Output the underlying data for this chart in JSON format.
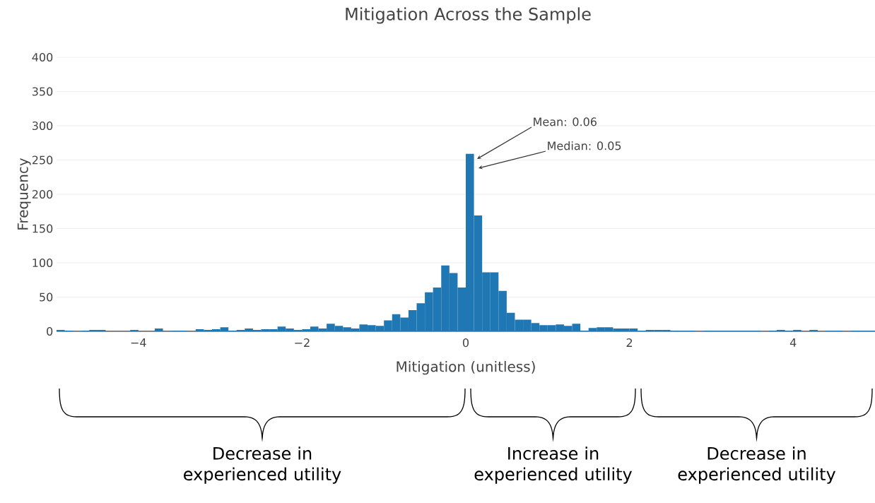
{
  "chart_data": {
    "type": "histogram",
    "title": "Mitigation Across the Sample",
    "xlabel": "Mitigation (unitless)",
    "ylabel": "Frequency",
    "bins": [
      -5.0,
      -4.9,
      -4.8,
      -4.7,
      -4.6,
      -4.5,
      -4.4,
      -4.3,
      -4.2,
      -4.1,
      -4.0,
      -3.9,
      -3.8,
      -3.7,
      -3.6,
      -3.5,
      -3.4,
      -3.3,
      -3.2,
      -3.1,
      -3.0,
      -2.9,
      -2.8,
      -2.7,
      -2.6,
      -2.5,
      -2.4,
      -2.3,
      -2.2,
      -2.1,
      -2.0,
      -1.9,
      -1.8,
      -1.7,
      -1.6,
      -1.5,
      -1.4,
      -1.3,
      -1.2,
      -1.1,
      -1.0,
      -0.9,
      -0.8,
      -0.7,
      -0.6,
      -0.5,
      -0.4,
      -0.3,
      -0.2,
      -0.1,
      0.0,
      0.1,
      0.2,
      0.3,
      0.4,
      0.5,
      0.6,
      0.7,
      0.8,
      0.9,
      1.0,
      1.1,
      1.2,
      1.3,
      1.4,
      1.5,
      1.6,
      1.7,
      1.8,
      1.9,
      2.0,
      2.1,
      2.2,
      2.3,
      2.4,
      2.5,
      2.6,
      2.7,
      2.8,
      2.9,
      3.0,
      3.1,
      3.2,
      3.3,
      3.4,
      3.5,
      3.6,
      3.7,
      3.8,
      3.9,
      4.0,
      4.1,
      4.2,
      4.3,
      4.4,
      4.5,
      4.6,
      4.7,
      4.8,
      4.9,
      5.0
    ],
    "values": [
      2,
      1,
      0,
      1,
      2,
      2,
      0,
      0,
      0,
      2,
      0,
      0,
      4,
      0,
      1,
      1,
      0,
      3,
      2,
      3,
      6,
      1,
      2,
      4,
      2,
      3,
      3,
      7,
      4,
      2,
      3,
      7,
      4,
      11,
      8,
      6,
      4,
      10,
      9,
      8,
      16,
      25,
      20,
      31,
      41,
      57,
      64,
      96,
      85,
      64,
      259,
      169,
      86,
      86,
      59,
      27,
      17,
      17,
      12,
      9,
      9,
      10,
      8,
      11,
      1,
      5,
      6,
      6,
      4,
      4,
      4,
      1,
      2,
      2,
      2,
      1,
      1,
      1,
      0,
      1,
      1,
      1,
      1,
      1,
      1,
      1,
      0,
      1,
      2,
      1,
      2,
      0,
      2,
      0,
      1,
      1,
      0,
      1,
      1,
      1
    ],
    "color": "#1f77b4",
    "xlim": [
      -5,
      5
    ],
    "ylim": [
      0,
      400
    ],
    "xticks": [
      {
        "value": -4,
        "label": "−4"
      },
      {
        "value": -2,
        "label": "−2"
      },
      0,
      2,
      4
    ],
    "yticks": [
      0,
      50,
      100,
      150,
      200,
      250,
      300,
      350,
      400
    ],
    "grid": "y",
    "annotations": [
      "Mean: 0.06",
      "Median: 0.05",
      "Decrease in experienced utility",
      "Increase in experienced utility",
      "Decrease in experienced utility"
    ]
  }
}
